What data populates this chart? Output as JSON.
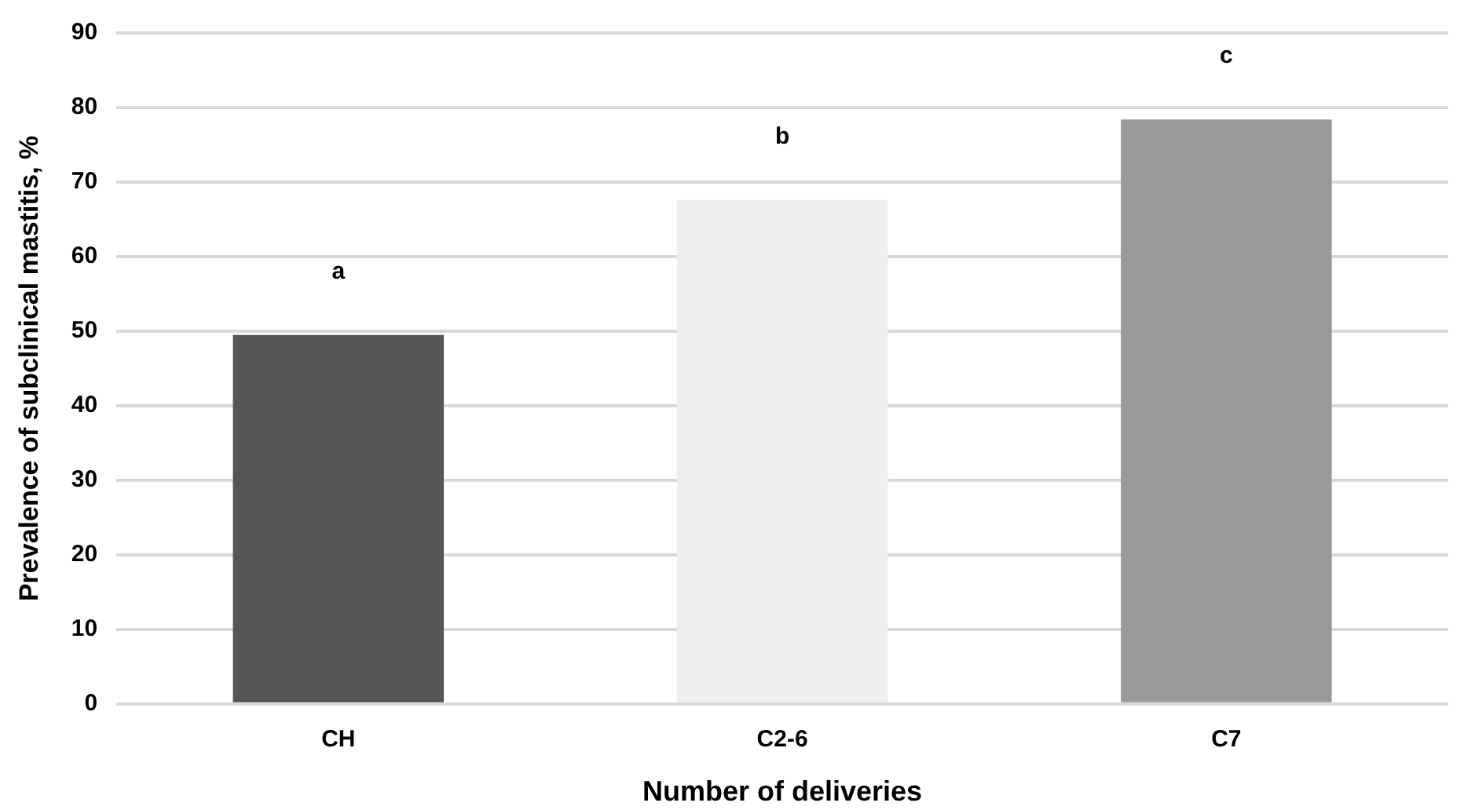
{
  "chart_data": {
    "type": "bar",
    "xlabel": "Number of deliveries",
    "ylabel": "Prevalence of subclinical mastitis, %",
    "categories": [
      "CH",
      "C2-6",
      "C7"
    ],
    "values": [
      49.5,
      67.6,
      78.4
    ],
    "colors": [
      "#555555",
      "#eeeeee",
      "#999999"
    ],
    "ylim": [
      0,
      90
    ],
    "yticks": [
      0,
      10,
      20,
      30,
      40,
      50,
      60,
      70,
      80,
      90
    ],
    "grid": "y",
    "annotations": [
      "a",
      "b",
      "c"
    ]
  }
}
